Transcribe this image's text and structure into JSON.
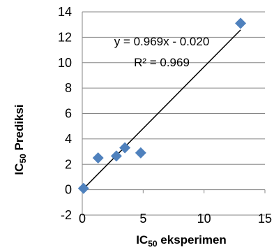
{
  "chart_data": {
    "type": "scatter",
    "title": "",
    "xlabel": {
      "main": "IC",
      "sub": "50",
      "rest": " eksperimen"
    },
    "ylabel": {
      "main": "IC",
      "sub": "50",
      "rest": "  Prediksi"
    },
    "xlim": [
      0,
      15
    ],
    "ylim": [
      -2,
      14
    ],
    "xticks": [
      0,
      5,
      10,
      15
    ],
    "yticks": [
      -2,
      0,
      2,
      4,
      6,
      8,
      10,
      12,
      14
    ],
    "grid": {
      "horizontal": true,
      "vertical": false
    },
    "legend": "none",
    "marker": {
      "shape": "diamond",
      "color": "#4f81bd"
    },
    "trendline": {
      "color": "#000000",
      "slope": 0.969,
      "intercept": -0.02,
      "x_range": [
        0,
        13
      ]
    },
    "annotations": {
      "equation": "y = 0.969x - 0.020",
      "r_squared": "R² = 0.969"
    },
    "series": [
      {
        "points": [
          {
            "x": 0.1,
            "y": 0.1
          },
          {
            "x": 1.3,
            "y": 2.5
          },
          {
            "x": 2.8,
            "y": 2.65
          },
          {
            "x": 3.5,
            "y": 3.3
          },
          {
            "x": 4.8,
            "y": 2.9
          },
          {
            "x": 13.0,
            "y": 13.1
          }
        ]
      }
    ]
  }
}
